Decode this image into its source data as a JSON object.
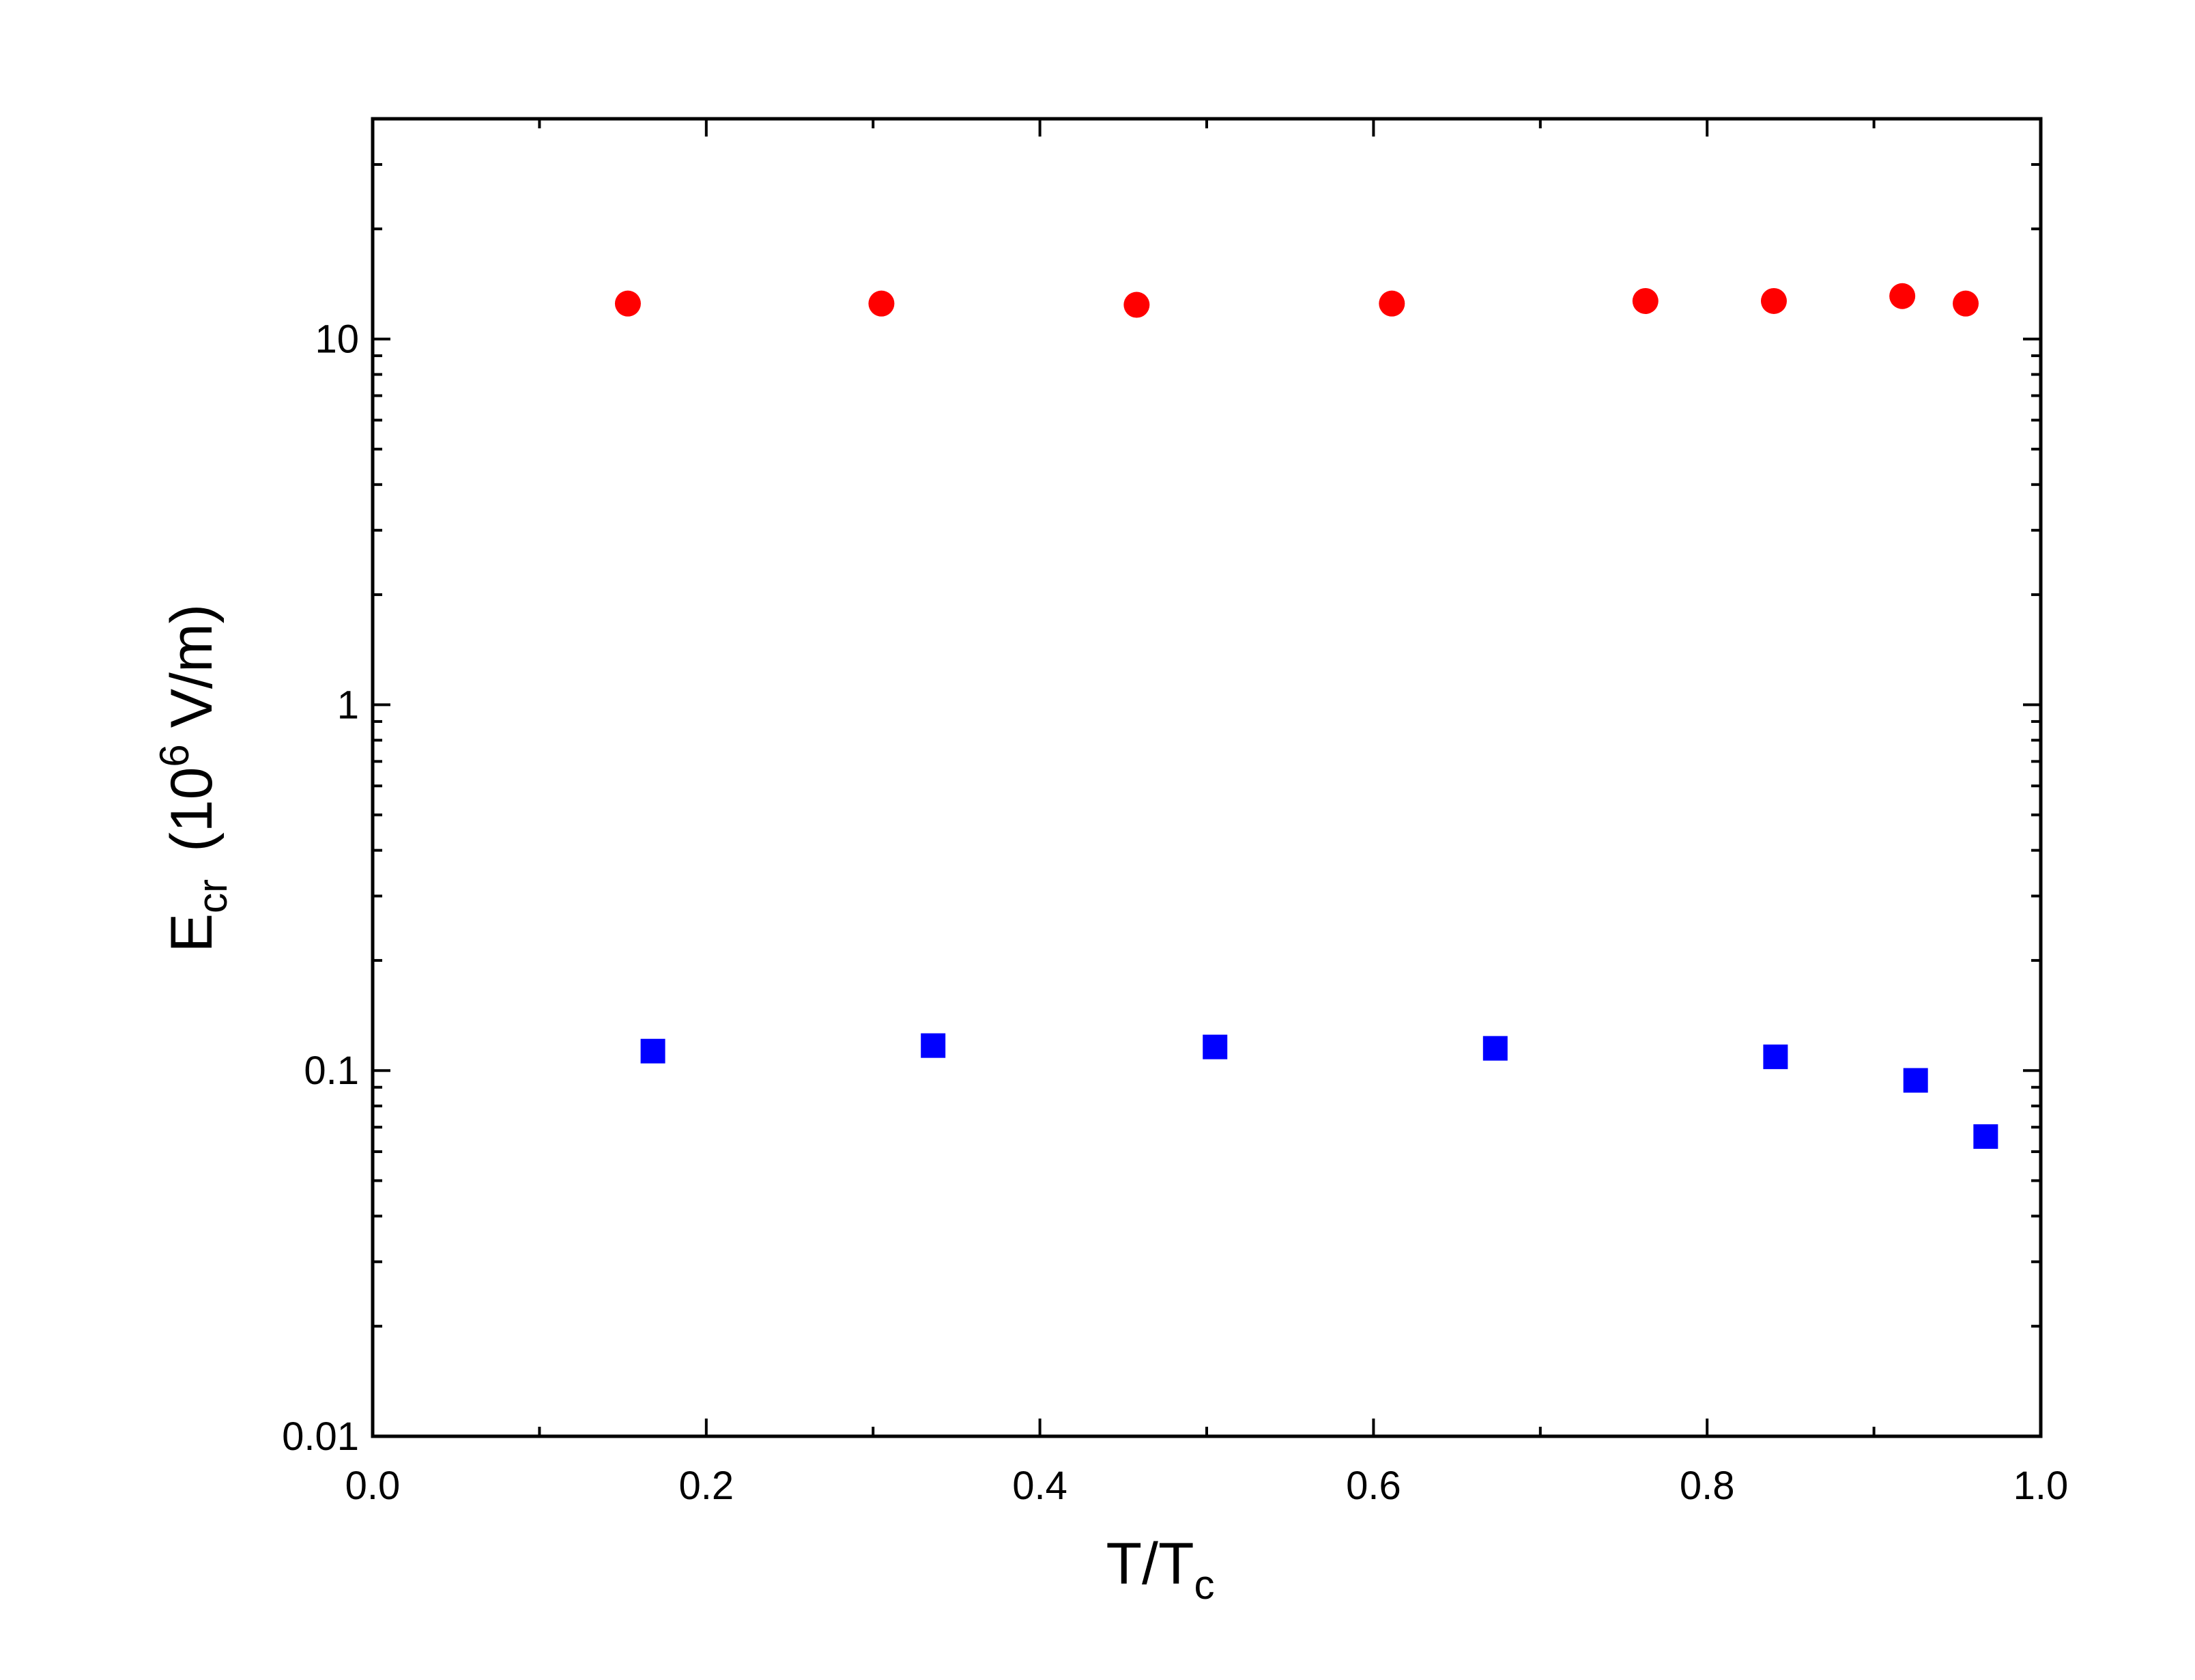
{
  "chart_data": {
    "type": "scatter",
    "title": "",
    "xlabel": {
      "main": "T/T",
      "sub": "c"
    },
    "ylabel": {
      "main": "E",
      "sub": "cr",
      "units_prefix": "(10",
      "units_sup": "6",
      "units_suffix": " V/m)"
    },
    "x_ticks": [
      "0.0",
      "0.2",
      "0.4",
      "0.6",
      "0.8",
      "1.0"
    ],
    "y_ticks": [
      "0.01",
      "0.1",
      "1",
      "10"
    ],
    "xlim": [
      0,
      1
    ],
    "ylim": [
      0.01,
      40
    ],
    "yscale": "log",
    "grid": false,
    "legend": "none",
    "series": [
      {
        "marker": "circle",
        "color": "#ff0000",
        "x": [
          0.153,
          0.305,
          0.458,
          0.611,
          0.763,
          0.84,
          0.917,
          0.955
        ],
        "y": [
          12.5,
          12.5,
          12.4,
          12.5,
          12.7,
          12.7,
          13.1,
          12.5
        ]
      },
      {
        "marker": "square",
        "color": "#0000ff",
        "x": [
          0.168,
          0.336,
          0.505,
          0.673,
          0.841,
          0.925,
          0.967
        ],
        "y": [
          0.113,
          0.117,
          0.116,
          0.115,
          0.109,
          0.094,
          0.066
        ]
      }
    ]
  }
}
